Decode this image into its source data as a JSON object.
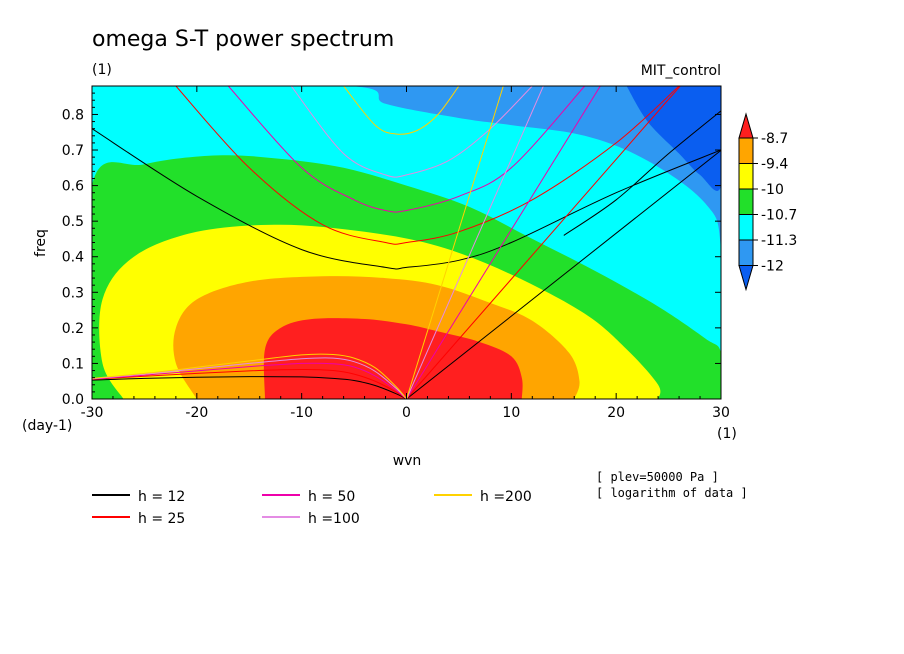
{
  "chart_data": {
    "type": "contour",
    "title": "omega S-T power spectrum",
    "subtitle": "(1)",
    "run_label": "MIT_control",
    "xlabel": "wvn",
    "ylabel": "freq",
    "x_unit": "(1)",
    "y_unit": "(day-1)",
    "xlim": [
      -30,
      30
    ],
    "ylim": [
      0,
      0.88
    ],
    "x_ticks": [
      -30,
      -20,
      -10,
      0,
      10,
      20,
      30
    ],
    "y_ticks": [
      0.0,
      0.1,
      0.2,
      0.3,
      0.4,
      0.5,
      0.6,
      0.7,
      0.8
    ],
    "x_tick_labels": [
      "-30",
      "-20",
      "-10",
      "0",
      "10",
      "20",
      "30"
    ],
    "y_tick_labels": [
      "0.0",
      "0.1",
      "0.2",
      "0.3",
      "0.4",
      "0.5",
      "0.6",
      "0.7",
      "0.8"
    ],
    "colorbar": {
      "levels": [
        "-8.7",
        "-9.4",
        "-10",
        "-10.7",
        "-11.3",
        "-12"
      ],
      "colors": [
        "#0a5ef0",
        "#2f98f2",
        "#00ffff",
        "#22e02a",
        "#ffff00",
        "#ffa500",
        "#ff1f1f"
      ]
    },
    "filled_regions": [
      {
        "level": "> -8.7",
        "color": "#ff1f1f",
        "boundary": [
          [
            -13.5,
            0
          ],
          [
            -13.5,
            0.14
          ],
          [
            -12,
            0.2
          ],
          [
            -9,
            0.225
          ],
          [
            -4,
            0.225
          ],
          [
            0,
            0.21
          ],
          [
            3,
            0.19
          ],
          [
            7,
            0.16
          ],
          [
            10,
            0.12
          ],
          [
            11,
            0.06
          ],
          [
            11,
            0
          ]
        ]
      },
      {
        "level": "-9.4 to -8.7",
        "color": "#ffa500",
        "boundary": [
          [
            -20,
            0
          ],
          [
            -22,
            0.1
          ],
          [
            -22,
            0.2
          ],
          [
            -20,
            0.28
          ],
          [
            -15,
            0.33
          ],
          [
            -8,
            0.345
          ],
          [
            -2,
            0.34
          ],
          [
            3,
            0.32
          ],
          [
            8,
            0.27
          ],
          [
            12,
            0.22
          ],
          [
            15.5,
            0.13
          ],
          [
            16.5,
            0.05
          ],
          [
            16,
            0
          ]
        ]
      },
      {
        "level": "-10 to -9.4",
        "color": "#ffff00",
        "boundary": [
          [
            -27,
            0
          ],
          [
            -29,
            0.1
          ],
          [
            -29,
            0.28
          ],
          [
            -26,
            0.4
          ],
          [
            -20,
            0.47
          ],
          [
            -12,
            0.49
          ],
          [
            -4,
            0.47
          ],
          [
            3,
            0.43
          ],
          [
            10,
            0.35
          ],
          [
            17,
            0.24
          ],
          [
            21,
            0.14
          ],
          [
            24,
            0.04
          ],
          [
            24,
            0
          ]
        ]
      },
      {
        "level": "-10.7 to -10",
        "color": "#22e02a",
        "boundary": [
          [
            -30,
            0
          ],
          [
            -30,
            0.6
          ],
          [
            -25,
            0.66
          ],
          [
            -18,
            0.685
          ],
          [
            -12,
            0.675
          ],
          [
            -6,
            0.65
          ],
          [
            0,
            0.6
          ],
          [
            6,
            0.54
          ],
          [
            12,
            0.45
          ],
          [
            18,
            0.36
          ],
          [
            24,
            0.26
          ],
          [
            28.5,
            0.17
          ],
          [
            30,
            0.13
          ],
          [
            30,
            0
          ]
        ]
      },
      {
        "level": "-11.3 to -10.7",
        "color": "#00ffff",
        "boundary": [
          [
            -30,
            0.88
          ],
          [
            -5.5,
            0.88
          ],
          [
            -2,
            0.83
          ],
          [
            5,
            0.79
          ],
          [
            10,
            0.77
          ],
          [
            17,
            0.74
          ],
          [
            23,
            0.67
          ],
          [
            28.5,
            0.55
          ],
          [
            30,
            0.42
          ],
          [
            30,
            0
          ],
          [
            -30,
            0
          ]
        ]
      },
      {
        "level": "-12 to -11.3",
        "color": "#2f98f2",
        "boundary": [
          [
            -30,
            0.88
          ],
          [
            30,
            0.88
          ],
          [
            30,
            0
          ],
          [
            -30,
            0
          ]
        ]
      },
      {
        "level": "< -12",
        "color": "#0a5ef0",
        "boundary": [
          [
            21,
            0.88
          ],
          [
            30,
            0.88
          ],
          [
            30,
            0.6
          ],
          [
            28,
            0.63
          ],
          [
            26,
            0.69
          ],
          [
            23,
            0.78
          ],
          [
            21,
            0.88
          ]
        ]
      }
    ],
    "dispersion_curves": [
      {
        "label": "h = 12",
        "h": 12,
        "color": "#000000"
      },
      {
        "label": "h = 25",
        "h": 25,
        "color": "#ff0000"
      },
      {
        "label": "h = 50",
        "h": 50,
        "color": "#ee00aa"
      },
      {
        "label": "h =100",
        "h": 100,
        "color": "#e48ce4"
      },
      {
        "label": "h =200",
        "h": 200,
        "color": "#ffd200"
      }
    ],
    "rossby_curves": [
      {
        "h": 12,
        "points": [
          [
            -30,
            0.053
          ],
          [
            -25,
            0.058
          ],
          [
            -20,
            0.061
          ],
          [
            -15,
            0.063
          ],
          [
            -10,
            0.062
          ],
          [
            -7,
            0.058
          ],
          [
            -5,
            0.052
          ],
          [
            -3,
            0.038
          ],
          [
            -1,
            0.015
          ],
          [
            0,
            0
          ]
        ]
      },
      {
        "h": 25,
        "points": [
          [
            -30,
            0.055
          ],
          [
            -25,
            0.064
          ],
          [
            -20,
            0.072
          ],
          [
            -15,
            0.079
          ],
          [
            -10,
            0.083
          ],
          [
            -7,
            0.08
          ],
          [
            -5,
            0.07
          ],
          [
            -3,
            0.05
          ],
          [
            -1,
            0.02
          ],
          [
            0,
            0
          ]
        ]
      },
      {
        "h": 50,
        "points": [
          [
            -30,
            0.056
          ],
          [
            -25,
            0.067
          ],
          [
            -20,
            0.079
          ],
          [
            -15,
            0.091
          ],
          [
            -10,
            0.1
          ],
          [
            -7,
            0.099
          ],
          [
            -5,
            0.09
          ],
          [
            -3,
            0.065
          ],
          [
            -1,
            0.025
          ],
          [
            0,
            0
          ]
        ]
      },
      {
        "h": 100,
        "points": [
          [
            -30,
            0.057
          ],
          [
            -25,
            0.07
          ],
          [
            -20,
            0.085
          ],
          [
            -15,
            0.1
          ],
          [
            -10,
            0.113
          ],
          [
            -7,
            0.115
          ],
          [
            -5,
            0.105
          ],
          [
            -3,
            0.078
          ],
          [
            -1,
            0.03
          ],
          [
            0,
            0
          ]
        ]
      },
      {
        "h": 200,
        "points": [
          [
            -30,
            0.058
          ],
          [
            -25,
            0.072
          ],
          [
            -20,
            0.089
          ],
          [
            -15,
            0.107
          ],
          [
            -10,
            0.124
          ],
          [
            -7,
            0.125
          ],
          [
            -5,
            0.115
          ],
          [
            -3,
            0.088
          ],
          [
            -1,
            0.035
          ],
          [
            0,
            0
          ]
        ]
      }
    ],
    "kelvin_curves": [
      {
        "h": 12,
        "slope": 0.0233
      },
      {
        "h": 25,
        "slope": 0.0337
      },
      {
        "h": 50,
        "slope": 0.0476
      },
      {
        "h": 100,
        "slope": 0.0674
      },
      {
        "h": 200,
        "slope": 0.0953
      }
    ],
    "ig_curves": [
      {
        "h": 12,
        "points": [
          [
            -30,
            0.76
          ],
          [
            -20,
            0.57
          ],
          [
            -10,
            0.42
          ],
          [
            -2,
            0.37
          ],
          [
            0,
            0.37
          ],
          [
            5,
            0.39
          ],
          [
            10,
            0.44
          ],
          [
            20,
            0.58
          ],
          [
            30,
            0.7
          ]
        ]
      },
      {
        "h": 12,
        "points": [
          [
            15,
            0.46
          ],
          [
            20,
            0.56
          ],
          [
            25,
            0.69
          ],
          [
            30,
            0.81
          ]
        ]
      },
      {
        "h": 25,
        "points": [
          [
            -22,
            0.88
          ],
          [
            -15,
            0.65
          ],
          [
            -8,
            0.49
          ],
          [
            -2,
            0.44
          ],
          [
            0,
            0.44
          ],
          [
            5,
            0.47
          ],
          [
            12,
            0.56
          ],
          [
            20,
            0.72
          ],
          [
            26,
            0.88
          ]
        ]
      },
      {
        "h": 50,
        "points": [
          [
            -17,
            0.88
          ],
          [
            -10,
            0.65
          ],
          [
            -5,
            0.56
          ],
          [
            -2,
            0.53
          ],
          [
            0,
            0.53
          ],
          [
            5,
            0.57
          ],
          [
            10,
            0.65
          ],
          [
            17,
            0.88
          ]
        ]
      },
      {
        "h": 100,
        "points": [
          [
            -11,
            0.88
          ],
          [
            -6,
            0.69
          ],
          [
            -2,
            0.63
          ],
          [
            0,
            0.63
          ],
          [
            4,
            0.67
          ],
          [
            8,
            0.76
          ],
          [
            12,
            0.88
          ]
        ]
      },
      {
        "h": 200,
        "points": [
          [
            -6,
            0.88
          ],
          [
            -3,
            0.77
          ],
          [
            -1,
            0.745
          ],
          [
            1,
            0.755
          ],
          [
            3,
            0.8
          ],
          [
            5,
            0.88
          ]
        ]
      }
    ],
    "annotations": [
      "[ plev=50000 Pa ]",
      "[ logarithm of data ]"
    ]
  }
}
